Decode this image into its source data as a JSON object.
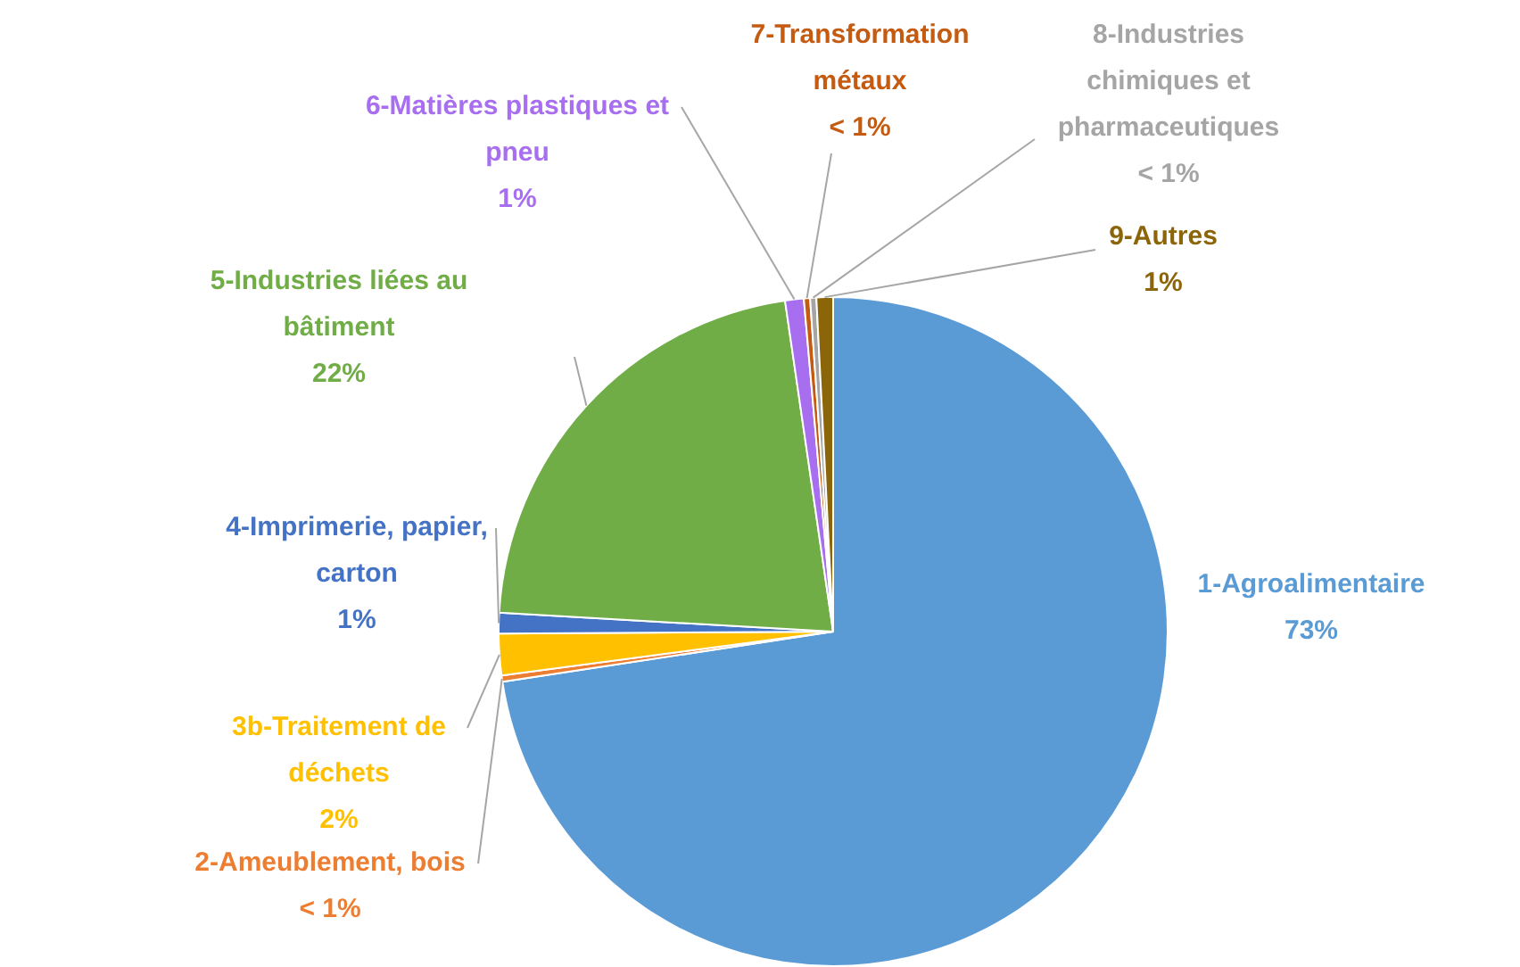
{
  "chart_data": {
    "type": "pie",
    "categories": [
      "1-Agroalimentaire",
      "2-Ameublement, bois",
      "3b-Traitement de déchets",
      "4-Imprimerie, papier, carton",
      "5-Industries liées au bâtiment",
      "6-Matières plastiques et pneu",
      "7-Transformation métaux",
      "8-Industries chimiques et pharmaceutiques",
      "9-Autres"
    ],
    "values": [
      72.6,
      0.3,
      2,
      1,
      21.8,
      0.9,
      0.3,
      0.3,
      0.8
    ],
    "value_labels": [
      "73%",
      "< 1%",
      "2%",
      "1%",
      "22%",
      "1%",
      "< 1%",
      "< 1%",
      "1%"
    ],
    "colors": [
      "#5b9bd5",
      "#ed7d31",
      "#ffc000",
      "#4472c4",
      "#70ad47",
      "#a86ef0",
      "#c55a11",
      "#a5a5a5",
      "#8b6508"
    ]
  }
}
